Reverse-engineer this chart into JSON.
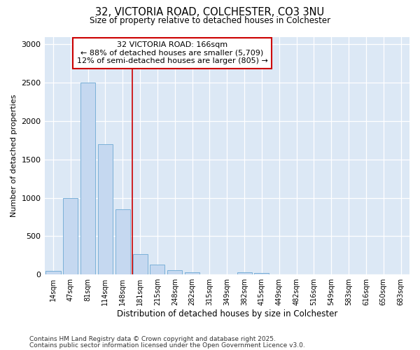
{
  "title_line1": "32, VICTORIA ROAD, COLCHESTER, CO3 3NU",
  "title_line2": "Size of property relative to detached houses in Colchester",
  "xlabel": "Distribution of detached houses by size in Colchester",
  "ylabel": "Number of detached properties",
  "categories": [
    "14sqm",
    "47sqm",
    "81sqm",
    "114sqm",
    "148sqm",
    "181sqm",
    "215sqm",
    "248sqm",
    "282sqm",
    "315sqm",
    "349sqm",
    "382sqm",
    "415sqm",
    "449sqm",
    "482sqm",
    "516sqm",
    "549sqm",
    "583sqm",
    "616sqm",
    "650sqm",
    "683sqm"
  ],
  "values": [
    50,
    1000,
    2500,
    1700,
    850,
    270,
    130,
    55,
    30,
    0,
    0,
    30,
    20,
    0,
    0,
    0,
    0,
    0,
    0,
    0,
    0
  ],
  "bar_color": "#c5d8f0",
  "bar_edge_color": "#7ab0d8",
  "vline_x": 4.545,
  "vline_color": "#cc0000",
  "annotation_text": "32 VICTORIA ROAD: 166sqm\n← 88% of detached houses are smaller (5,709)\n12% of semi-detached houses are larger (805) →",
  "annotation_box_color": "#ffffff",
  "annotation_box_edge_color": "#cc0000",
  "bg_color": "#ffffff",
  "plot_bg_color": "#dce8f5",
  "footer_line1": "Contains HM Land Registry data © Crown copyright and database right 2025.",
  "footer_line2": "Contains public sector information licensed under the Open Government Licence v3.0.",
  "ylim": [
    0,
    3100
  ],
  "yticks": [
    0,
    500,
    1000,
    1500,
    2000,
    2500,
    3000
  ]
}
